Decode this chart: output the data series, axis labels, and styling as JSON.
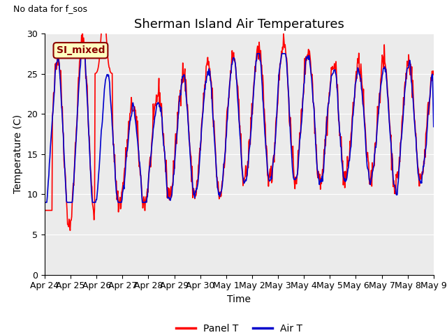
{
  "title": "Sherman Island Air Temperatures",
  "top_left_text": "No data for f_sos",
  "xlabel": "Time",
  "ylabel": "Temperature (C)",
  "ylim": [
    0,
    30
  ],
  "yticks": [
    0,
    5,
    10,
    15,
    20,
    25,
    30
  ],
  "x_tick_labels": [
    "Apr 24",
    "Apr 25",
    "Apr 26",
    "Apr 27",
    "Apr 28",
    "Apr 29",
    "Apr 30",
    "May 1",
    "May 2",
    "May 3",
    "May 4",
    "May 5",
    "May 6",
    "May 7",
    "May 8",
    "May 9"
  ],
  "panel_t_color": "#FF0000",
  "air_t_color": "#0000CC",
  "legend_box_label": "SI_mixed",
  "legend_box_bg": "#FFFFC0",
  "legend_box_edge": "#8B0000",
  "bg_color": "#EBEBEB",
  "title_fontsize": 13,
  "axis_label_fontsize": 10,
  "tick_label_fontsize": 9,
  "legend_fontsize": 10,
  "line_width": 1.2,
  "figsize": [
    6.4,
    4.8
  ],
  "dpi": 100
}
